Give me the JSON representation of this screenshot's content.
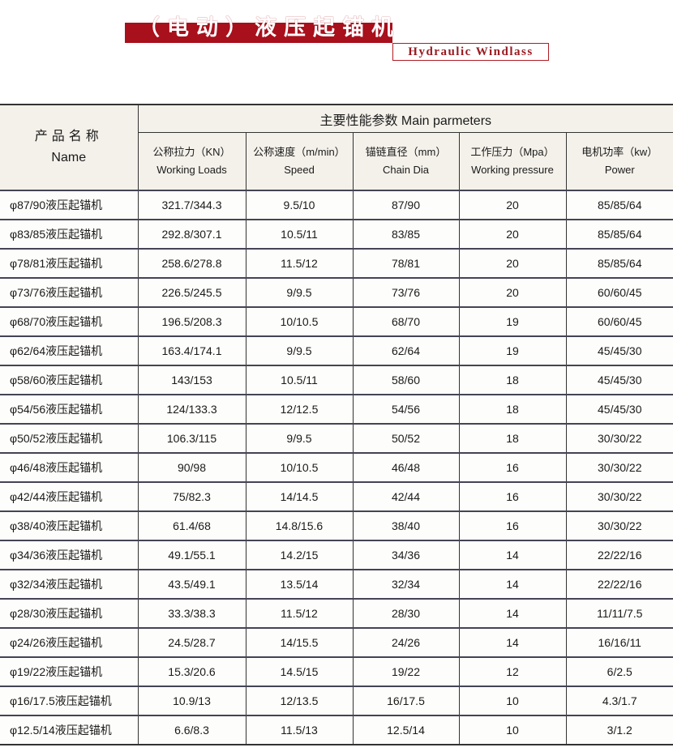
{
  "header": {
    "title_cn": "（电动）液压起锚机",
    "title_en": "Hydraulic Windlass",
    "brand_color": "#a8101c"
  },
  "table": {
    "name_header_cn": "产品名称",
    "name_header_en": "Name",
    "group_header": "主要性能参数  Main parmeters",
    "columns": [
      {
        "cn": "公称拉力（KN）",
        "en": "Working Loads"
      },
      {
        "cn": "公称速度（m/min）",
        "en": "Speed"
      },
      {
        "cn": "锚链直径（mm）",
        "en": "Chain Dia"
      },
      {
        "cn": "工作压力（Mpa）",
        "en": "Working pressure"
      },
      {
        "cn": "电机功率（kw）",
        "en": "Power"
      }
    ],
    "rows": [
      [
        "φ87/90液压起锚机",
        "321.7/344.3",
        "9.5/10",
        "87/90",
        "20",
        "85/85/64"
      ],
      [
        "φ83/85液压起锚机",
        "292.8/307.1",
        "10.5/11",
        "83/85",
        "20",
        "85/85/64"
      ],
      [
        "φ78/81液压起锚机",
        "258.6/278.8",
        "11.5/12",
        "78/81",
        "20",
        "85/85/64"
      ],
      [
        "φ73/76液压起锚机",
        "226.5/245.5",
        "9/9.5",
        "73/76",
        "20",
        "60/60/45"
      ],
      [
        "φ68/70液压起锚机",
        "196.5/208.3",
        "10/10.5",
        "68/70",
        "19",
        "60/60/45"
      ],
      [
        "φ62/64液压起锚机",
        "163.4/174.1",
        "9/9.5",
        "62/64",
        "19",
        "45/45/30"
      ],
      [
        "φ58/60液压起锚机",
        "143/153",
        "10.5/11",
        "58/60",
        "18",
        "45/45/30"
      ],
      [
        "φ54/56液压起锚机",
        "124/133.3",
        "12/12.5",
        "54/56",
        "18",
        "45/45/30"
      ],
      [
        "φ50/52液压起锚机",
        "106.3/115",
        "9/9.5",
        "50/52",
        "18",
        "30/30/22"
      ],
      [
        "φ46/48液压起锚机",
        "90/98",
        "10/10.5",
        "46/48",
        "16",
        "30/30/22"
      ],
      [
        "φ42/44液压起锚机",
        "75/82.3",
        "14/14.5",
        "42/44",
        "16",
        "30/30/22"
      ],
      [
        "φ38/40液压起锚机",
        "61.4/68",
        "14.8/15.6",
        "38/40",
        "16",
        "30/30/22"
      ],
      [
        "φ34/36液压起锚机",
        "49.1/55.1",
        "14.2/15",
        "34/36",
        "14",
        "22/22/16"
      ],
      [
        "φ32/34液压起锚机",
        "43.5/49.1",
        "13.5/14",
        "32/34",
        "14",
        "22/22/16"
      ],
      [
        "φ28/30液压起锚机",
        "33.3/38.3",
        "11.5/12",
        "28/30",
        "14",
        "11/11/7.5"
      ],
      [
        "φ24/26液压起锚机",
        "24.5/28.7",
        "14/15.5",
        "24/26",
        "14",
        "16/16/11"
      ],
      [
        "φ19/22液压起锚机",
        "15.3/20.6",
        "14.5/15",
        "19/22",
        "12",
        "6/2.5"
      ],
      [
        "φ16/17.5液压起锚机",
        "10.9/13",
        "12/13.5",
        "16/17.5",
        "10",
        "4.3/1.7"
      ],
      [
        "φ12.5/14液压起锚机",
        "6.6/8.3",
        "11.5/13",
        "12.5/14",
        "10",
        "3/1.2"
      ]
    ]
  }
}
